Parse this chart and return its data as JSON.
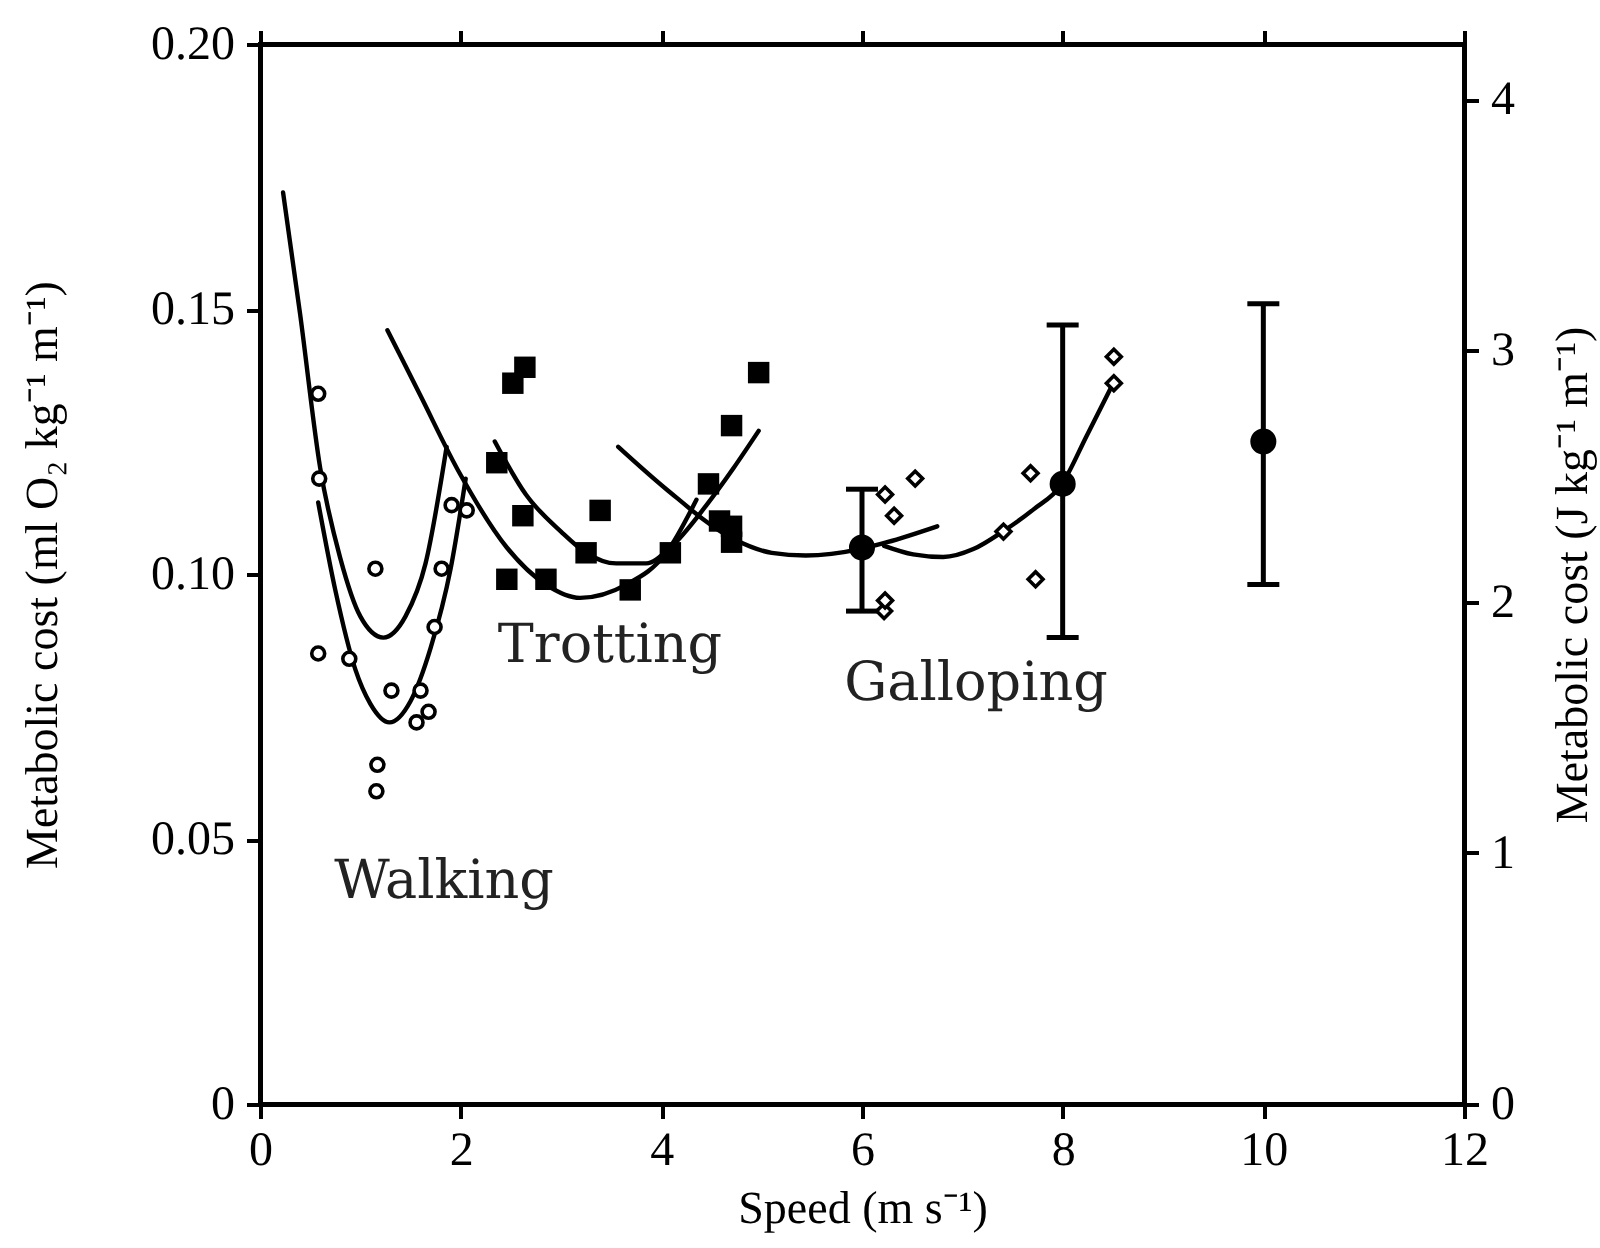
{
  "chart_data": {
    "type": "scatter",
    "xlabel": "Speed (m s⁻¹)",
    "ylabel": "Metabolic cost (ml O₂ kg⁻¹ m⁻¹)",
    "y2label": "Metabolic cost (J kg⁻¹ m⁻¹)",
    "xlim": [
      0,
      12
    ],
    "xticks": [
      0,
      2,
      4,
      6,
      8,
      10,
      12
    ],
    "ylim": [
      0,
      0.2
    ],
    "yticks": [
      0,
      0.05,
      {
        "value": 0.1,
        "label": "0.10"
      },
      0.15,
      {
        "value": 0.2,
        "label": "0.20"
      }
    ],
    "y2lim": [
      0,
      4.22
    ],
    "y2ticks": [
      0,
      1,
      2,
      3,
      4
    ],
    "line_style": "solid",
    "annotations": [
      "Walking",
      "Trotting",
      "Galloping"
    ],
    "series": [
      {
        "type": "line",
        "color": "#000000",
        "x": [
          0.23,
          0.4,
          0.6,
          0.8,
          1.0,
          1.23,
          1.45,
          1.65,
          1.86
        ],
        "values": [
          0.172,
          0.149,
          0.12,
          0.103,
          0.092,
          0.088,
          0.092,
          0.102,
          0.124
        ]
      },
      {
        "type": "line",
        "color": "#000000",
        "x": [
          0.58,
          0.75,
          0.95,
          1.1,
          1.29,
          1.5,
          1.7,
          1.9,
          2.05
        ],
        "values": [
          0.1135,
          0.097,
          0.082,
          0.0755,
          0.072,
          0.076,
          0.086,
          0.101,
          0.118
        ]
      },
      {
        "type": "line",
        "color": "#000000",
        "x": [
          1.27,
          1.59,
          1.99,
          2.46,
          2.85,
          3.19,
          3.65,
          4.05,
          4.35
        ],
        "values": [
          0.146,
          0.134,
          0.119,
          0.105,
          0.098,
          0.0955,
          0.098,
          0.104,
          0.114
        ]
      },
      {
        "type": "line",
        "color": "#000000",
        "x": [
          2.34,
          2.65,
          3.0,
          3.25,
          3.55,
          3.85,
          4.09,
          4.45,
          4.72,
          4.97
        ],
        "values": [
          0.125,
          0.115,
          0.108,
          0.104,
          0.102,
          0.102,
          0.105,
          0.113,
          0.12,
          0.127
        ]
      },
      {
        "type": "line",
        "color": "#000000",
        "x": [
          3.57,
          4.05,
          4.72,
          5.1,
          5.44,
          5.98,
          6.25,
          6.75
        ],
        "values": [
          0.124,
          0.116,
          0.1066,
          0.104,
          0.1035,
          0.1047,
          0.106,
          0.109
        ]
      },
      {
        "type": "line",
        "color": "#000000",
        "x": [
          6.22,
          6.51,
          6.81,
          7.11,
          7.41,
          7.71,
          7.99,
          8.24,
          8.51
        ],
        "values": [
          0.1053,
          0.1037,
          0.1032,
          0.1047,
          0.1081,
          0.1122,
          0.1169,
          0.1261,
          0.1362
        ]
      },
      {
        "color": "#000000",
        "marker": "circle",
        "x": [
          0.58,
          0.59,
          1.15,
          1.81,
          1.91,
          2.06,
          0.58,
          0.89,
          1.74,
          1.31,
          1.6,
          1.68,
          1.56,
          1.17,
          1.16
        ],
        "values": [
          0.134,
          0.118,
          0.101,
          0.101,
          0.113,
          0.112,
          0.085,
          0.084,
          0.09,
          0.078,
          0.078,
          0.074,
          0.072,
          0.064,
          0.059
        ]
      },
      {
        "color": "#000000",
        "marker": "square",
        "x": [
          2.36,
          2.46,
          2.52,
          2.62,
          2.64,
          2.85,
          3.25,
          3.39,
          3.69,
          4.09,
          4.47,
          4.58,
          4.7,
          4.7,
          4.7,
          4.97
        ],
        "values": [
          0.121,
          0.099,
          0.136,
          0.111,
          0.139,
          0.099,
          0.104,
          0.112,
          0.097,
          0.104,
          0.117,
          0.11,
          0.128,
          0.109,
          0.106,
          0.138
        ]
      },
      {
        "color": "#000000",
        "marker": "diamond",
        "x": [
          6.22,
          6.23,
          6.23,
          6.32,
          6.53,
          7.41,
          7.68,
          7.73,
          8.51,
          8.51
        ],
        "values": [
          0.093,
          0.095,
          0.115,
          0.111,
          0.118,
          0.108,
          0.119,
          0.099,
          0.136,
          0.141
        ]
      },
      {
        "color": "#000000",
        "marker": "circle",
        "x": [
          6,
          8,
          10
        ],
        "values": [
          0.105,
          0.117,
          0.125
        ],
        "errors": [
          [
            0.093,
            0.116
          ],
          [
            0.088,
            0.147
          ],
          [
            0.098,
            0.151
          ]
        ]
      }
    ]
  }
}
